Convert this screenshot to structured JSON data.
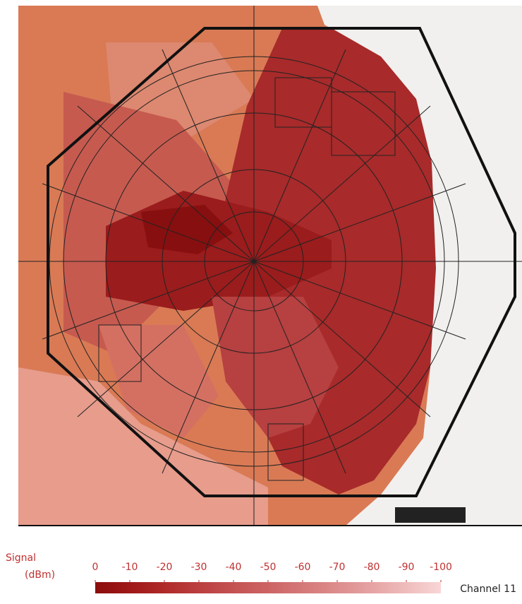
{
  "legend": {
    "title": "Signal",
    "unit": "(dBm)",
    "ticks": [
      0,
      -10,
      -20,
      -30,
      -40,
      -50,
      -60,
      -70,
      -80,
      -90,
      -100
    ],
    "colors": [
      "#8c0d0d",
      "#a01818",
      "#b02a2a",
      "#bb3f3f",
      "#c45252",
      "#cd6464",
      "#d57878",
      "#dd8c8c",
      "#e6a3a3",
      "#efbcbc",
      "#f8d6d6"
    ],
    "label": "Channel 11"
  }
}
